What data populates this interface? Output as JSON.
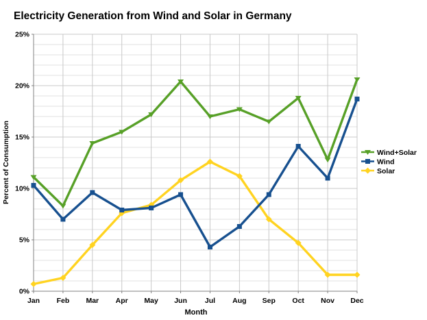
{
  "chart_data": {
    "type": "line",
    "title": "Electricity Generation from Wind and Solar in Germany",
    "xlabel": "Month",
    "ylabel": "Percent of Consumption",
    "ylim": [
      0,
      25
    ],
    "y_major_step": 5,
    "y_minor_step": 1,
    "y_tick_labels": [
      "0%",
      "5%",
      "10%",
      "15%",
      "20%",
      "25%"
    ],
    "grid": true,
    "legend_position": "right",
    "categories": [
      "Jan",
      "Feb",
      "Mar",
      "Apr",
      "May",
      "Jun",
      "Jul",
      "Aug",
      "Sep",
      "Oct",
      "Nov",
      "Dec"
    ],
    "series": [
      {
        "name": "Wind+Solar",
        "color": "#57A027",
        "marker": "triangle-down",
        "values": [
          11.1,
          8.3,
          14.4,
          15.5,
          17.2,
          20.4,
          17.0,
          17.7,
          16.5,
          18.8,
          12.8,
          20.6
        ]
      },
      {
        "name": "Wind",
        "color": "#17508F",
        "marker": "square",
        "values": [
          10.3,
          7.0,
          9.6,
          7.9,
          8.1,
          9.4,
          4.3,
          6.3,
          9.4,
          14.1,
          11.0,
          18.7
        ]
      },
      {
        "name": "Solar",
        "color": "#FFD320",
        "marker": "diamond",
        "values": [
          0.7,
          1.3,
          4.5,
          7.6,
          8.4,
          10.8,
          12.6,
          11.2,
          7.0,
          4.7,
          1.6,
          1.6
        ]
      }
    ]
  }
}
